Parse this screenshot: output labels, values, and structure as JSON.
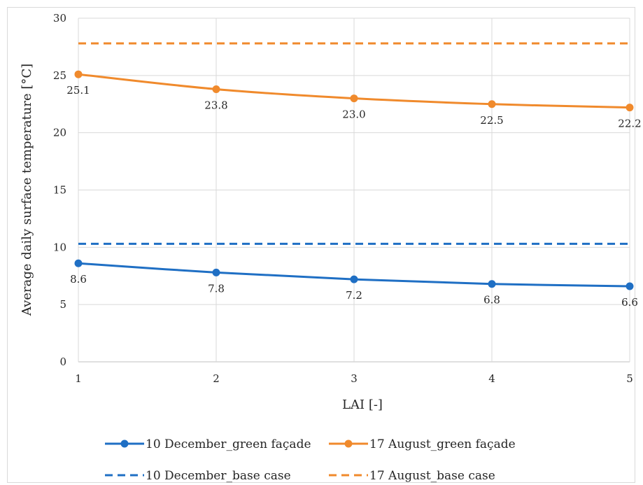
{
  "chart_data": {
    "type": "line",
    "xlabel": "LAI [-]",
    "ylabel": "Average daily surface temperature [°C]",
    "x": [
      1,
      2,
      3,
      4,
      5
    ],
    "xlim": [
      1,
      5
    ],
    "ylim": [
      0,
      30
    ],
    "y_ticks": [
      0,
      5,
      10,
      15,
      20,
      25,
      30
    ],
    "x_ticks": [
      1,
      2,
      3,
      4,
      5
    ],
    "grid": "vertical and horizontal major gridlines",
    "legend_position": "bottom",
    "series": [
      {
        "name": "10 December_green façade",
        "values": [
          8.6,
          7.8,
          7.2,
          6.8,
          6.6
        ],
        "labels": [
          "8.6",
          "7.8",
          "7.2",
          "6.8",
          "6.6"
        ],
        "color": "#1f6fc4",
        "style": "solid",
        "markers": true
      },
      {
        "name": "17 August_green façade",
        "values": [
          25.1,
          23.8,
          23.0,
          22.5,
          22.2
        ],
        "labels": [
          "25.1",
          "23.8",
          "23.0",
          "22.5",
          "22.2"
        ],
        "color": "#f08a2c",
        "style": "solid",
        "markers": true
      },
      {
        "name": "10 December_base case",
        "values": [
          10.3,
          10.3,
          10.3,
          10.3,
          10.3
        ],
        "color": "#1f6fc4",
        "style": "dashed",
        "markers": false
      },
      {
        "name": "17 August_base case",
        "values": [
          27.8,
          27.8,
          27.8,
          27.8,
          27.8
        ],
        "color": "#f08a2c",
        "style": "dashed",
        "markers": false
      }
    ]
  }
}
